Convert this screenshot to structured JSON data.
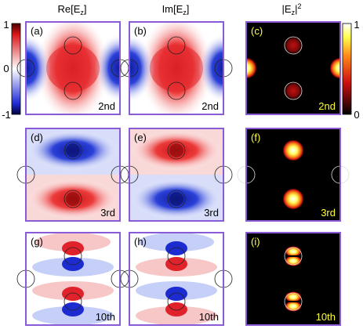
{
  "columns": [
    {
      "id": "re",
      "title": "Re[E",
      "title_sub": "z",
      "title_end": "]"
    },
    {
      "id": "im",
      "title": "Im[E",
      "title_sub": "z",
      "title_end": "]"
    },
    {
      "id": "abs",
      "title": "|E",
      "title_sub": "z",
      "title_end": "|",
      "title_sup": "2"
    }
  ],
  "rows": [
    {
      "id": "r1",
      "order_label": "2nd"
    },
    {
      "id": "r2",
      "order_label": "3rd"
    },
    {
      "id": "r3",
      "order_label": "10th"
    }
  ],
  "panel_labels": [
    [
      "(a)",
      "(b)",
      "(c)"
    ],
    [
      "(d)",
      "(e)",
      "(f)"
    ],
    [
      "(g)",
      "(h)",
      "(i)"
    ]
  ],
  "colorbar_field": {
    "top": "1",
    "mid": "0",
    "bottom": "-1",
    "range": [
      -1,
      1
    ],
    "colors": [
      "#1f2bd6",
      "#ffffff",
      "#e8262a"
    ]
  },
  "colorbar_intensity": {
    "top": "1",
    "bottom": "0",
    "range": [
      0,
      1
    ],
    "colors": [
      "#000000",
      "#cc1010",
      "#ff8c1a",
      "#ffff4d",
      "#ffffff"
    ]
  },
  "colors": {
    "frame": "#8a5bd6",
    "label_light_panel": "#000000",
    "label_dark_panel": "#ffff33"
  }
}
